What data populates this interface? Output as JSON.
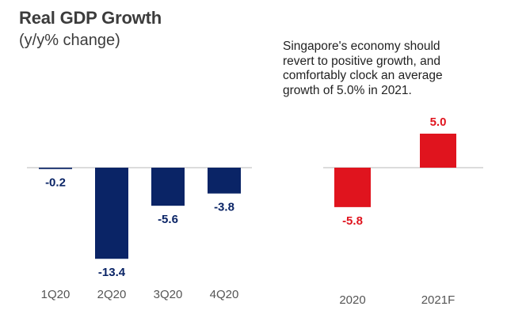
{
  "title": "Real GDP Growth",
  "subtitle": "(y/y% change)",
  "annotation": "Singapore's economy should revert to positive growth, and comfortably clock an average growth of 5.0% in 2021.",
  "colors": {
    "quarterly_bar": "#0a2466",
    "annual_bar": "#e0141e",
    "baseline": "#c8c8c8",
    "tick_label": "#555555"
  },
  "chart_data": [
    {
      "type": "bar",
      "categories": [
        "1Q20",
        "2Q20",
        "3Q20",
        "4Q20"
      ],
      "values": [
        -0.2,
        -13.4,
        -5.6,
        -3.8
      ],
      "data_labels": [
        "-0.2",
        "-13.4",
        "-5.6",
        "-3.8"
      ],
      "color": "#0a2466",
      "ylim": [
        -14,
        0
      ],
      "grid": false
    },
    {
      "type": "bar",
      "categories": [
        "2020",
        "2021F"
      ],
      "values": [
        -5.8,
        5.0
      ],
      "data_labels": [
        "-5.8",
        "5.0"
      ],
      "color": "#e0141e",
      "ylim": [
        -7,
        6
      ],
      "grid": false
    }
  ]
}
